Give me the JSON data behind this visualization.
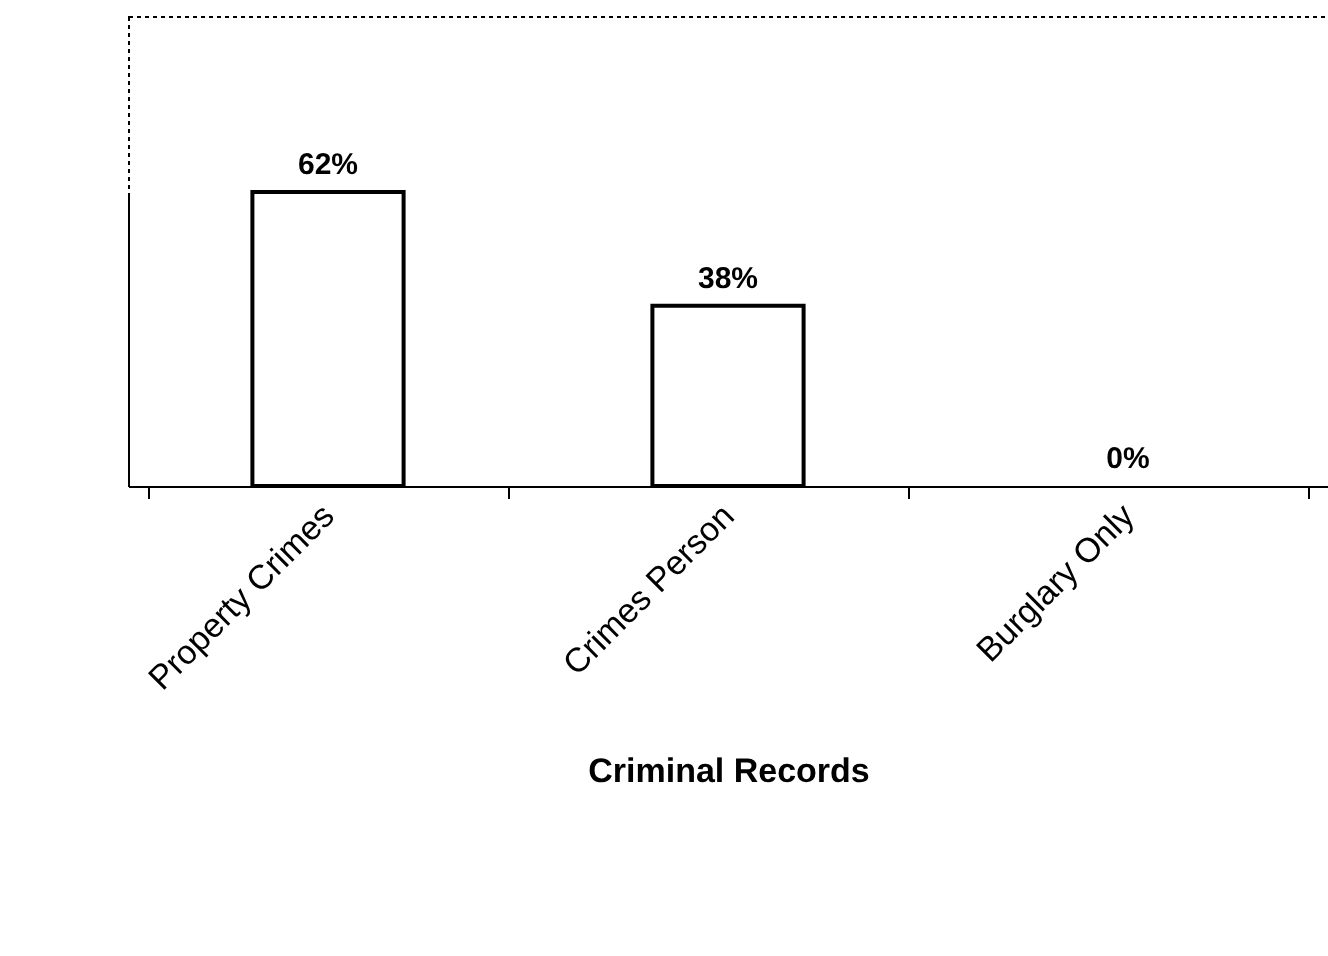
{
  "chart_data": {
    "type": "bar",
    "xlabel": "Criminal Records",
    "categories": [
      "Property Crimes",
      "Crimes Person",
      "Burglary Only"
    ],
    "values": [
      62,
      38,
      0
    ],
    "color": "#ffffff",
    "value_labels": [
      "62%",
      "38%",
      "0%"
    ]
  }
}
